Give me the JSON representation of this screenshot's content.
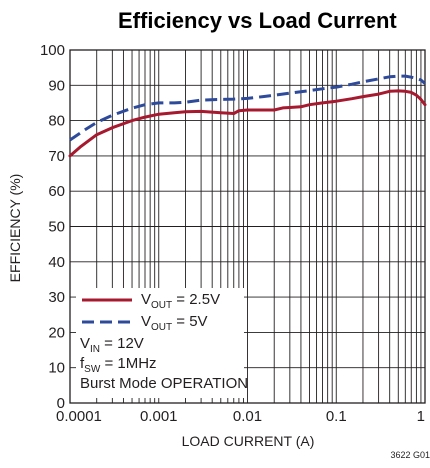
{
  "chart_data": {
    "type": "line",
    "title": "Efficiency vs Load Current",
    "xlabel": "LOAD CURRENT (A)",
    "ylabel": "EFFICIENCY (%)",
    "xscale": "log",
    "xlim": [
      0.0001,
      1
    ],
    "ylim": [
      0,
      100
    ],
    "x_ticks": [
      "0.0001",
      "0.001",
      "0.01",
      "0.1",
      "1"
    ],
    "y_ticks": [
      "0",
      "10",
      "20",
      "30",
      "40",
      "50",
      "60",
      "70",
      "80",
      "90",
      "100"
    ],
    "grid": true,
    "legend_position": "bottom-left",
    "series": [
      {
        "name_main": "V",
        "name_sub": "OUT",
        "name_rest": " = 2.5V",
        "color": "#a6192e",
        "style": "solid",
        "x": [
          0.0001,
          0.00013,
          0.0002,
          0.0003,
          0.0005,
          0.0007,
          0.001,
          0.0015,
          0.002,
          0.003,
          0.005,
          0.007,
          0.008,
          0.01,
          0.015,
          0.02,
          0.025,
          0.03,
          0.04,
          0.05,
          0.07,
          0.1,
          0.15,
          0.2,
          0.3,
          0.4,
          0.5,
          0.6,
          0.7,
          0.8,
          0.9,
          1
        ],
        "y": [
          70,
          72.5,
          76,
          78,
          80,
          81,
          81.8,
          82.2,
          82.5,
          82.6,
          82.2,
          82,
          82.8,
          83,
          83,
          83,
          83.6,
          83.7,
          83.9,
          84.5,
          85,
          85.5,
          86.2,
          86.8,
          87.5,
          88.3,
          88.4,
          88.3,
          88,
          87.2,
          86,
          84.5
        ]
      },
      {
        "name_main": "V",
        "name_sub": "OUT",
        "name_rest": " = 5V",
        "color": "#2e4a9b",
        "style": "dashed",
        "x": [
          0.0001,
          0.00015,
          0.0002,
          0.0003,
          0.0005,
          0.0007,
          0.001,
          0.0015,
          0.002,
          0.003,
          0.005,
          0.007,
          0.01,
          0.015,
          0.02,
          0.03,
          0.05,
          0.07,
          0.1,
          0.15,
          0.2,
          0.3,
          0.4,
          0.5,
          0.6,
          0.7,
          0.8,
          0.9,
          1
        ],
        "y": [
          74.5,
          77.5,
          79.5,
          81.5,
          83.5,
          84.5,
          85,
          85,
          85.2,
          85.8,
          86,
          86.1,
          86.3,
          86.8,
          87.2,
          87.8,
          88.5,
          89,
          89.5,
          90.3,
          91,
          91.8,
          92.4,
          92.6,
          92.6,
          92.3,
          92,
          91.5,
          90.5
        ]
      }
    ],
    "annotations": [
      {
        "main": "V",
        "sub": "IN",
        "rest": " = 12V"
      },
      {
        "main": "f",
        "sub": "SW",
        "rest": " = 1MHz"
      },
      {
        "main": "Burst Mode OPERATION",
        "sub": "",
        "rest": ""
      }
    ],
    "figure_id": "3622 G01"
  }
}
